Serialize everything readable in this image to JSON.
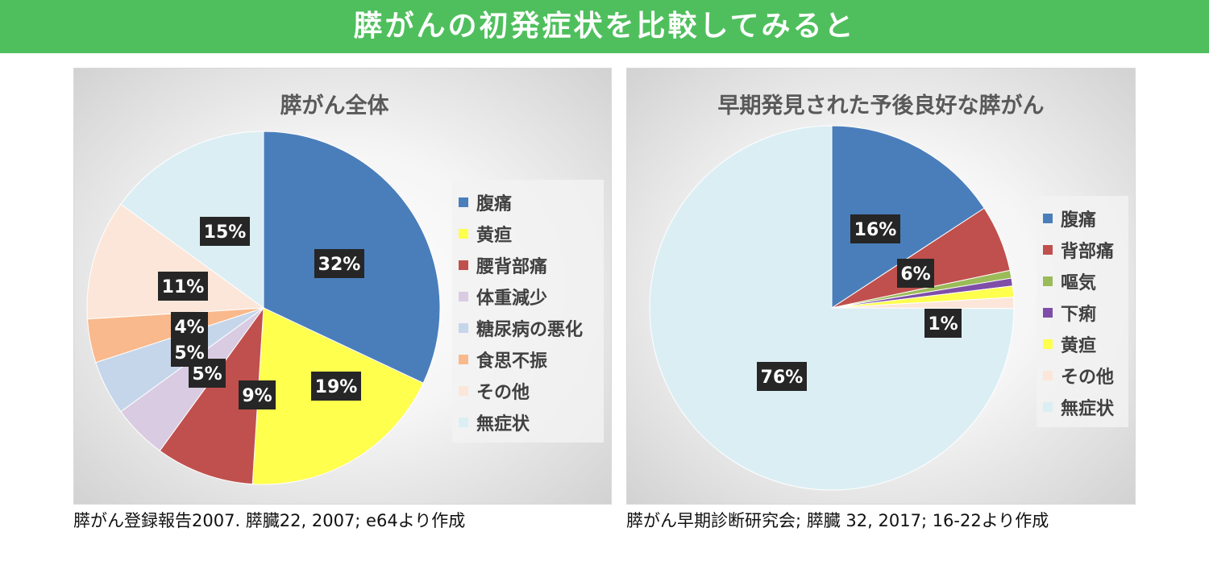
{
  "header": {
    "title": "膵がんの初発症状を比較してみると"
  },
  "colors": {
    "banner": "#4fbf5d",
    "label_box": "#262626"
  },
  "chart_data": [
    {
      "type": "pie",
      "title": "膵がん全体",
      "categories": [
        "腹痛",
        "黄疸",
        "腰背部痛",
        "体重減少",
        "糖尿病の悪化",
        "食思不振",
        "その他",
        "無症状"
      ],
      "values": [
        32,
        19,
        9,
        5,
        5,
        4,
        11,
        15
      ],
      "labels": [
        "32%",
        "19%",
        "9%",
        "5%",
        "5%",
        "4%",
        "11%",
        "15%"
      ],
      "colors": [
        "#4a7ebb",
        "#ffff4d",
        "#c0504d",
        "#d9cbe2",
        "#c6d6ea",
        "#f9b98c",
        "#fce6d9",
        "#dbeef4"
      ],
      "legend_position": "right",
      "source": "膵がん登録報告2007. 膵臓22, 2007; e64より作成"
    },
    {
      "type": "pie",
      "title": "早期発見された予後良好な膵がん",
      "categories": [
        "腹痛",
        "背部痛",
        "嘔気",
        "下痢",
        "黄疸",
        "その他",
        "無症状"
      ],
      "values": [
        16,
        6,
        0.7,
        0.7,
        1,
        1,
        76
      ],
      "labels": [
        "16%",
        "6%",
        "",
        "",
        "1%",
        "",
        "76%"
      ],
      "colors": [
        "#4a7ebb",
        "#c0504d",
        "#9bbb59",
        "#7f4ea8",
        "#ffff4d",
        "#fce6d9",
        "#dbeef4"
      ],
      "legend_position": "right",
      "source": "膵がん早期診断研究会; 膵臓 32, 2017;  16-22より作成"
    }
  ]
}
